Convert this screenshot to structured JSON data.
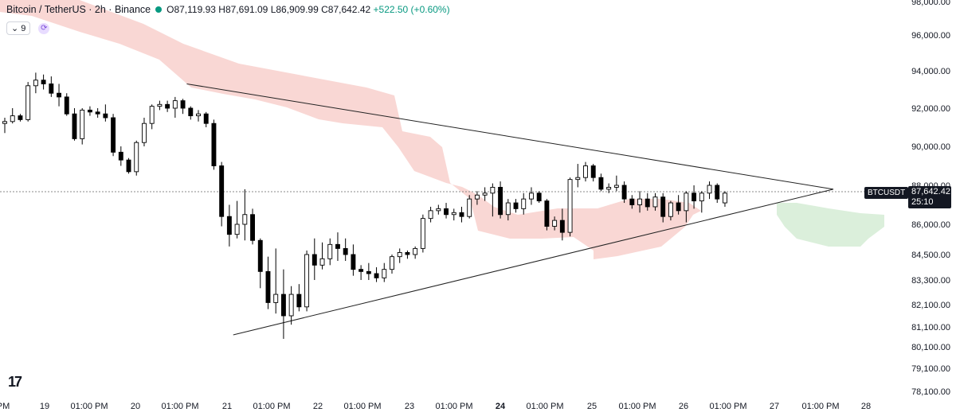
{
  "header": {
    "title": "Bitcoin / TetherUS · 2h · Binance",
    "open": "O87,119.93",
    "high": "H87,691.09",
    "low": "L86,909.99",
    "close": "C87,642.42",
    "change": "+522.50 (+0.60%)"
  },
  "indicator": {
    "label": "9"
  },
  "logo": "17",
  "price_badge": {
    "symbol": "BTCUSDT",
    "price": "87,642.42",
    "countdown": "25:10"
  },
  "colors": {
    "up": "#ffffff",
    "down": "#000000",
    "cloud_bear": "#f7c9c5",
    "cloud_bull": "#cfe9cf",
    "grid_text": "#131722"
  },
  "chart_data": {
    "type": "candlestick",
    "symbol": "BTCUSDT",
    "ylim": [
      78000,
      98000
    ],
    "y_tick_labels": [
      "98,000.00",
      "96,000.00",
      "94,000.00",
      "92,000.00",
      "90,000.00",
      "88,000.00",
      "86,000.00",
      "84,500.00",
      "83,300.00",
      "82,100.00",
      "81,100.00",
      "80,100.00",
      "79,100.00",
      "78,100.00"
    ],
    "x_tick_labels": [
      "PM",
      "19",
      "01:00 PM",
      "20",
      "01:00 PM",
      "21",
      "01:00 PM",
      "22",
      "01:00 PM",
      "23",
      "01:00 PM",
      "24",
      "01:00 PM",
      "25",
      "01:00 PM",
      "26",
      "01:00 PM",
      "27",
      "01:00 PM",
      "28"
    ],
    "last_price": 87642.42,
    "candles": [
      [
        91200,
        91500,
        90700,
        91300
      ],
      [
        91300,
        92000,
        91200,
        91600
      ],
      [
        91600,
        91700,
        91300,
        91400
      ],
      [
        91400,
        93400,
        91300,
        93200
      ],
      [
        93200,
        93900,
        92800,
        93500
      ],
      [
        93500,
        93800,
        93000,
        93300
      ],
      [
        93300,
        93700,
        92600,
        92800
      ],
      [
        92800,
        93300,
        92100,
        92600
      ],
      [
        92600,
        92800,
        91600,
        91700
      ],
      [
        91700,
        92000,
        90300,
        90400
      ],
      [
        90400,
        92000,
        90100,
        91900
      ],
      [
        91900,
        92100,
        91600,
        91800
      ],
      [
        91800,
        92000,
        91500,
        91700
      ],
      [
        91700,
        92200,
        91300,
        91500
      ],
      [
        91500,
        91700,
        89500,
        89700
      ],
      [
        89700,
        90000,
        89000,
        89300
      ],
      [
        89300,
        89400,
        88600,
        88700
      ],
      [
        88700,
        90300,
        88500,
        90200
      ],
      [
        90200,
        91500,
        90000,
        91200
      ],
      [
        91200,
        92200,
        90900,
        92100
      ],
      [
        92100,
        92400,
        91900,
        92200
      ],
      [
        92200,
        92400,
        91800,
        92000
      ],
      [
        92000,
        92600,
        91500,
        92400
      ],
      [
        92400,
        92500,
        91700,
        92000
      ],
      [
        92000,
        92100,
        91400,
        91600
      ],
      [
        91600,
        91900,
        91300,
        91700
      ],
      [
        91700,
        91800,
        91000,
        91200
      ],
      [
        91200,
        91400,
        88800,
        89000
      ],
      [
        89000,
        89200,
        85900,
        86400
      ],
      [
        86400,
        87000,
        84900,
        85500
      ],
      [
        85500,
        87200,
        85300,
        86000
      ],
      [
        86000,
        87800,
        85200,
        86500
      ],
      [
        86500,
        86800,
        85000,
        85200
      ],
      [
        85200,
        85300,
        82900,
        83700
      ],
      [
        83700,
        84400,
        81900,
        82200
      ],
      [
        82200,
        84800,
        81700,
        82600
      ],
      [
        82600,
        83800,
        80500,
        81600
      ],
      [
        81600,
        83000,
        81200,
        82600
      ],
      [
        82600,
        83100,
        81800,
        82000
      ],
      [
        82000,
        84700,
        81800,
        84500
      ],
      [
        84500,
        85300,
        83300,
        84000
      ],
      [
        84000,
        85100,
        83800,
        84300
      ],
      [
        84300,
        85300,
        84000,
        85000
      ],
      [
        85000,
        85600,
        84200,
        84800
      ],
      [
        84800,
        85300,
        84200,
        84500
      ],
      [
        84500,
        85000,
        83500,
        83800
      ],
      [
        83800,
        84000,
        83300,
        83700
      ],
      [
        83700,
        84100,
        83300,
        83600
      ],
      [
        83600,
        83900,
        83200,
        83400
      ],
      [
        83400,
        84100,
        83200,
        83800
      ],
      [
        83800,
        84500,
        83600,
        84400
      ],
      [
        84400,
        84800,
        84100,
        84600
      ],
      [
        84600,
        84700,
        84300,
        84500
      ],
      [
        84500,
        84900,
        84300,
        84800
      ],
      [
        84800,
        86500,
        84600,
        86300
      ],
      [
        86300,
        86900,
        86100,
        86700
      ],
      [
        86700,
        87000,
        86500,
        86800
      ],
      [
        86800,
        87100,
        86300,
        86500
      ],
      [
        86500,
        86800,
        86200,
        86600
      ],
      [
        86600,
        86900,
        86100,
        86400
      ],
      [
        86400,
        87500,
        86300,
        87300
      ],
      [
        87300,
        87700,
        87000,
        87500
      ],
      [
        87500,
        87900,
        87200,
        87600
      ],
      [
        87600,
        88100,
        86400,
        87900
      ],
      [
        87900,
        88200,
        86300,
        86500
      ],
      [
        86500,
        87300,
        86200,
        87100
      ],
      [
        87100,
        87300,
        86600,
        86800
      ],
      [
        86800,
        87600,
        86500,
        87300
      ],
      [
        87300,
        87900,
        87000,
        87600
      ],
      [
        87600,
        87700,
        87100,
        87200
      ],
      [
        87200,
        87300,
        85700,
        85900
      ],
      [
        85900,
        86400,
        85700,
        86200
      ],
      [
        86200,
        86800,
        85200,
        85600
      ],
      [
        85600,
        88400,
        85400,
        88300
      ],
      [
        88300,
        89100,
        87900,
        88400
      ],
      [
        88400,
        89200,
        88200,
        89000
      ],
      [
        89000,
        89100,
        88200,
        88400
      ],
      [
        88400,
        88600,
        87700,
        87800
      ],
      [
        87800,
        88100,
        87600,
        87900
      ],
      [
        87900,
        88500,
        87700,
        88000
      ],
      [
        88000,
        88200,
        87100,
        87300
      ],
      [
        87300,
        87500,
        86800,
        87000
      ],
      [
        87000,
        87700,
        86600,
        87300
      ],
      [
        87300,
        87600,
        86700,
        86900
      ],
      [
        86900,
        87600,
        86700,
        87400
      ],
      [
        87400,
        87600,
        86100,
        86400
      ],
      [
        86400,
        87200,
        86200,
        87100
      ],
      [
        87100,
        87500,
        86500,
        86700
      ],
      [
        86700,
        87700,
        86100,
        87600
      ],
      [
        87600,
        88000,
        86800,
        87200
      ],
      [
        87200,
        87700,
        86600,
        87600
      ],
      [
        87600,
        88200,
        87300,
        88000
      ],
      [
        88000,
        88100,
        87100,
        87300
      ],
      [
        87100,
        87700,
        86900,
        87600
      ]
    ],
    "trend_lines": [
      {
        "name": "upper",
        "from": [
          23.5,
          93300
        ],
        "to": [
          107,
          87800
        ]
      },
      {
        "name": "lower",
        "from": [
          29.5,
          80700
        ],
        "to": [
          107,
          87800
        ]
      }
    ]
  }
}
